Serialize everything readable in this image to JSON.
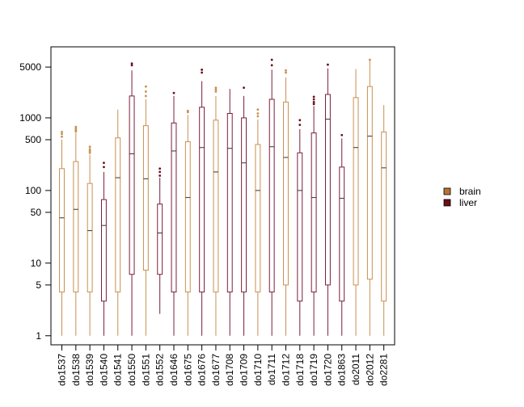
{
  "chart_data": {
    "type": "boxplot",
    "title": "",
    "xlabel": "",
    "ylabel": "",
    "y_scale": "log",
    "ylim": [
      0.75,
      9500
    ],
    "y_ticks": [
      1,
      5,
      10,
      50,
      100,
      500,
      1000,
      5000
    ],
    "y_tick_labels": [
      "1",
      "5",
      "10",
      "50",
      "100",
      "500",
      "1000",
      "5000"
    ],
    "grid": false,
    "legend_position": "right",
    "legend": [
      {
        "label": "brain",
        "color": "#b87333"
      },
      {
        "label": "liver",
        "color": "#6b0f1a"
      }
    ],
    "series_colors": {
      "brain": "#c8904f",
      "liver": "#7a1f3a"
    },
    "outlier_colors": {
      "brain": "#c8904f",
      "liver": "#6b0f1a"
    },
    "categories": [
      "do1537",
      "do1538",
      "do1539",
      "do1540",
      "do1541",
      "do1550",
      "do1551",
      "do1552",
      "do1646",
      "do1675",
      "do1676",
      "do1677",
      "do1708",
      "do1709",
      "do1710",
      "do1711",
      "do1712",
      "do1718",
      "do1719",
      "do1720",
      "do1863",
      "do2011",
      "do2012",
      "do2281"
    ],
    "boxes": [
      {
        "sample": "do1537",
        "tissue": "brain",
        "whisker_low": 1,
        "q1": 4,
        "median": 42,
        "q3": 200,
        "whisker_high": 500,
        "outliers": [
          550,
          600,
          640
        ]
      },
      {
        "sample": "do1538",
        "tissue": "brain",
        "whisker_low": 1,
        "q1": 4,
        "median": 55,
        "q3": 250,
        "whisker_high": 620,
        "outliers": [
          650,
          680,
          710,
          750
        ]
      },
      {
        "sample": "do1539",
        "tissue": "brain",
        "whisker_low": 1,
        "q1": 4,
        "median": 28,
        "q3": 125,
        "whisker_high": 310,
        "outliers": [
          330,
          350,
          370,
          400
        ]
      },
      {
        "sample": "do1540",
        "tissue": "liver",
        "whisker_low": 1,
        "q1": 3,
        "median": 33,
        "q3": 75,
        "whisker_high": 180,
        "outliers": [
          210,
          240
        ]
      },
      {
        "sample": "do1541",
        "tissue": "brain",
        "whisker_low": 1,
        "q1": 4,
        "median": 150,
        "q3": 530,
        "whisker_high": 1300,
        "outliers": []
      },
      {
        "sample": "do1550",
        "tissue": "liver",
        "whisker_low": 1,
        "q1": 7,
        "median": 320,
        "q3": 2000,
        "whisker_high": 4500,
        "outliers": [
          5300,
          5600
        ]
      },
      {
        "sample": "do1551",
        "tissue": "brain",
        "whisker_low": 1,
        "q1": 8,
        "median": 145,
        "q3": 780,
        "whisker_high": 1800,
        "outliers": [
          2000,
          2300,
          2700
        ]
      },
      {
        "sample": "do1552",
        "tissue": "liver",
        "whisker_low": 2,
        "q1": 7,
        "median": 26,
        "q3": 65,
        "whisker_high": 150,
        "outliers": [
          160,
          180,
          200
        ]
      },
      {
        "sample": "do1646",
        "tissue": "liver",
        "whisker_low": 1,
        "q1": 4,
        "median": 350,
        "q3": 850,
        "whisker_high": 2000,
        "outliers": [
          2200
        ]
      },
      {
        "sample": "do1675",
        "tissue": "brain",
        "whisker_low": 1,
        "q1": 4,
        "median": 80,
        "q3": 470,
        "whisker_high": 1100,
        "outliers": [
          1200,
          1250
        ]
      },
      {
        "sample": "do1676",
        "tissue": "liver",
        "whisker_low": 1,
        "q1": 4,
        "median": 390,
        "q3": 1400,
        "whisker_high": 3200,
        "outliers": [
          4200,
          4600
        ]
      },
      {
        "sample": "do1677",
        "tissue": "brain",
        "whisker_low": 1,
        "q1": 4,
        "median": 180,
        "q3": 930,
        "whisker_high": 2000,
        "outliers": [
          2300,
          2450,
          2600
        ]
      },
      {
        "sample": "do1708",
        "tissue": "liver",
        "whisker_low": 1,
        "q1": 4,
        "median": 380,
        "q3": 1150,
        "whisker_high": 2500,
        "outliers": []
      },
      {
        "sample": "do1709",
        "tissue": "liver",
        "whisker_low": 1,
        "q1": 4,
        "median": 240,
        "q3": 1000,
        "whisker_high": 2000,
        "outliers": [
          2600
        ]
      },
      {
        "sample": "do1710",
        "tissue": "brain",
        "whisker_low": 1,
        "q1": 4,
        "median": 100,
        "q3": 430,
        "whisker_high": 950,
        "outliers": [
          1050,
          1150,
          1300
        ]
      },
      {
        "sample": "do1711",
        "tissue": "liver",
        "whisker_low": 1,
        "q1": 4,
        "median": 400,
        "q3": 1800,
        "whisker_high": 4600,
        "outliers": [
          5300,
          6300
        ]
      },
      {
        "sample": "do1712",
        "tissue": "brain",
        "whisker_low": 1,
        "q1": 5,
        "median": 285,
        "q3": 1650,
        "whisker_high": 3600,
        "outliers": [
          4200,
          4500
        ]
      },
      {
        "sample": "do1718",
        "tissue": "liver",
        "whisker_low": 1,
        "q1": 3,
        "median": 100,
        "q3": 330,
        "whisker_high": 700,
        "outliers": [
          800,
          930
        ]
      },
      {
        "sample": "do1719",
        "tissue": "liver",
        "whisker_low": 1,
        "q1": 4,
        "median": 80,
        "q3": 620,
        "whisker_high": 1450,
        "outliers": [
          1550,
          1650,
          1800,
          1950
        ]
      },
      {
        "sample": "do1720",
        "tissue": "liver",
        "whisker_low": 1,
        "q1": 5,
        "median": 960,
        "q3": 2100,
        "whisker_high": 4800,
        "outliers": [
          5400
        ]
      },
      {
        "sample": "do1863",
        "tissue": "liver",
        "whisker_low": 1,
        "q1": 3,
        "median": 78,
        "q3": 210,
        "whisker_high": 520,
        "outliers": [
          580
        ]
      },
      {
        "sample": "do2011",
        "tissue": "brain",
        "whisker_low": 1,
        "q1": 5,
        "median": 390,
        "q3": 1900,
        "whisker_high": 4700,
        "outliers": []
      },
      {
        "sample": "do2012",
        "tissue": "brain",
        "whisker_low": 1,
        "q1": 6,
        "median": 560,
        "q3": 2700,
        "whisker_high": 6100,
        "outliers": [
          6300
        ]
      },
      {
        "sample": "do2281",
        "tissue": "brain",
        "whisker_low": 1,
        "q1": 3,
        "median": 205,
        "q3": 640,
        "whisker_high": 1500,
        "outliers": []
      }
    ]
  }
}
